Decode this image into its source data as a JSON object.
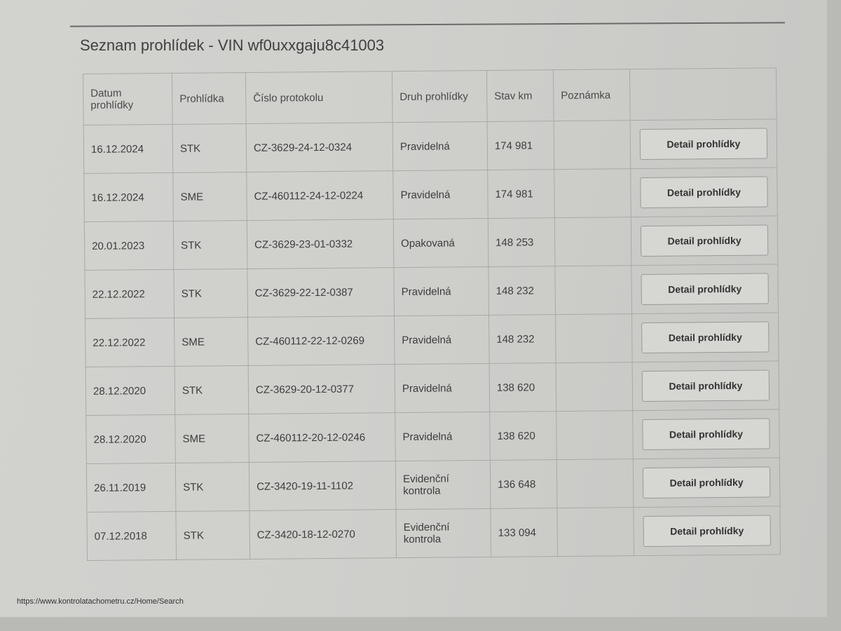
{
  "title": "Seznam prohlídek - VIN wf0uxxgaju8c41003",
  "table": {
    "headers": [
      "Datum prohlídky",
      "Prohlídka",
      "Číslo protokolu",
      "Druh prohlídky",
      "Stav km",
      "Poznámka",
      ""
    ],
    "rows": [
      {
        "date": "16.12.2024",
        "type": "STK",
        "protocol": "CZ-3629-24-12-0324",
        "kind": "Pravidelná",
        "km": "174 981",
        "note": "",
        "action": "Detail prohlídky"
      },
      {
        "date": "16.12.2024",
        "type": "SME",
        "protocol": "CZ-460112-24-12-0224",
        "kind": "Pravidelná",
        "km": "174 981",
        "note": "",
        "action": "Detail prohlídky"
      },
      {
        "date": "20.01.2023",
        "type": "STK",
        "protocol": "CZ-3629-23-01-0332",
        "kind": "Opakovaná",
        "km": "148 253",
        "note": "",
        "action": "Detail prohlídky"
      },
      {
        "date": "22.12.2022",
        "type": "STK",
        "protocol": "CZ-3629-22-12-0387",
        "kind": "Pravidelná",
        "km": "148 232",
        "note": "",
        "action": "Detail prohlídky"
      },
      {
        "date": "22.12.2022",
        "type": "SME",
        "protocol": "CZ-460112-22-12-0269",
        "kind": "Pravidelná",
        "km": "148 232",
        "note": "",
        "action": "Detail prohlídky"
      },
      {
        "date": "28.12.2020",
        "type": "STK",
        "protocol": "CZ-3629-20-12-0377",
        "kind": "Pravidelná",
        "km": "138 620",
        "note": "",
        "action": "Detail prohlídky"
      },
      {
        "date": "28.12.2020",
        "type": "SME",
        "protocol": "CZ-460112-20-12-0246",
        "kind": "Pravidelná",
        "km": "138 620",
        "note": "",
        "action": "Detail prohlídky"
      },
      {
        "date": "26.11.2019",
        "type": "STK",
        "protocol": "CZ-3420-19-11-1102",
        "kind": "Evidenční kontrola",
        "km": "136 648",
        "note": "",
        "action": "Detail prohlídky"
      },
      {
        "date": "07.12.2018",
        "type": "STK",
        "protocol": "CZ-3420-18-12-0270",
        "kind": "Evidenční kontrola",
        "km": "133 094",
        "note": "",
        "action": "Detail prohlídky"
      }
    ]
  },
  "footer_url": "https://www.kontrolatachometru.cz/Home/Search"
}
